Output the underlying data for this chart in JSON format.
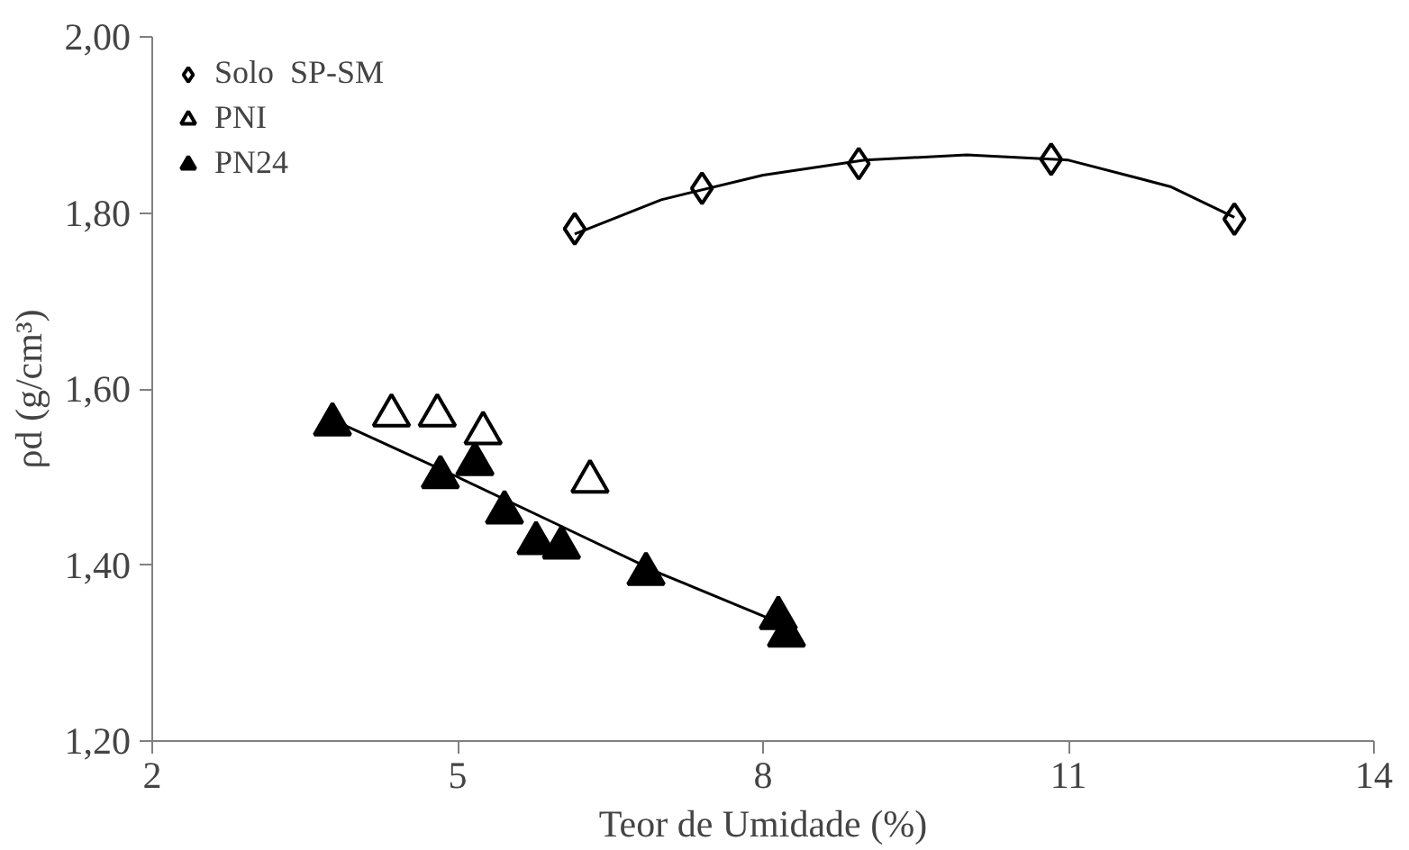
{
  "chart_data": {
    "type": "scatter",
    "xlabel": "Teor de Umidade (%)",
    "ylabel": "ρd (g/cm³)",
    "xlim": [
      2,
      14
    ],
    "xticks": [
      2,
      5,
      8,
      11,
      14
    ],
    "ylim": [
      1.2,
      2.0
    ],
    "yticks": [
      {
        "value": 1.2,
        "label": "1,20"
      },
      {
        "value": 1.4,
        "label": "1,40"
      },
      {
        "value": 1.6,
        "label": "1,60"
      },
      {
        "value": 1.8,
        "label": "1,80"
      },
      {
        "value": 2.0,
        "label": "2,00"
      }
    ],
    "grid": false,
    "legend": "top left",
    "series": [
      {
        "name": "Solo  SP-SM",
        "color": "#ffffff",
        "marker": "diamond",
        "x": [
          6.15,
          7.4,
          8.94,
          10.83,
          12.63
        ],
        "values": [
          1.782,
          1.828,
          1.856,
          1.861,
          1.793
        ]
      },
      {
        "name": "PNI",
        "color": "#ffffff",
        "marker": "triangle",
        "x": [
          4.35,
          4.8,
          5.25,
          6.3
        ],
        "values": [
          1.57,
          1.57,
          1.55,
          1.495
        ]
      },
      {
        "name": "PN24",
        "color": "#000000",
        "marker": "triangle",
        "x": [
          3.77,
          4.83,
          5.17,
          5.46,
          5.77,
          6.02,
          6.85,
          8.15,
          8.23
        ],
        "values": [
          1.56,
          1.5,
          1.515,
          1.46,
          1.425,
          1.42,
          1.39,
          1.34,
          1.32
        ]
      },
      {
        "type": "line",
        "color": "#000000",
        "marker": "none",
        "x": [
          6.15,
          7.0,
          8.0,
          9.0,
          10.0,
          11.0,
          12.0,
          12.63
        ],
        "values": [
          1.776,
          1.815,
          1.843,
          1.86,
          1.866,
          1.86,
          1.83,
          1.795
        ]
      },
      {
        "type": "line",
        "color": "#000000",
        "marker": "none",
        "x": [
          3.77,
          5.0,
          6.0,
          7.0,
          8.15
        ],
        "values": [
          1.565,
          1.5,
          1.445,
          1.39,
          1.335
        ]
      }
    ]
  }
}
